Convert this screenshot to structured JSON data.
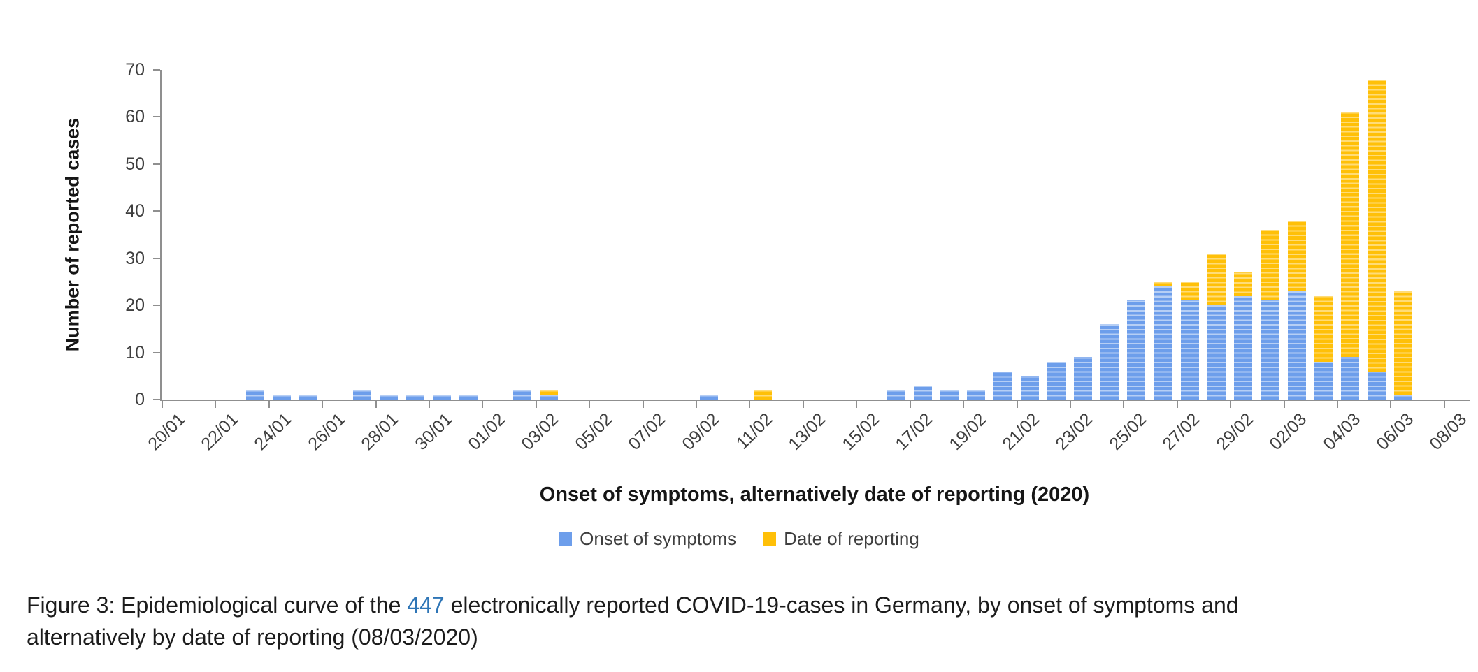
{
  "chart_data": {
    "type": "bar",
    "stacked": true,
    "xlabel": "Onset of symptoms, alternatively date of reporting (2020)",
    "ylabel": "Number of reported cases",
    "ylim": [
      0,
      70
    ],
    "y_ticks": [
      0,
      10,
      20,
      30,
      40,
      50,
      60,
      70
    ],
    "x_tick_interval": 2,
    "legend_position": "bottom-center",
    "grid": false,
    "categories": [
      "20/01",
      "21/01",
      "22/01",
      "23/01",
      "24/01",
      "25/01",
      "26/01",
      "27/01",
      "28/01",
      "29/01",
      "30/01",
      "31/01",
      "01/02",
      "02/02",
      "03/02",
      "04/02",
      "05/02",
      "06/02",
      "07/02",
      "08/02",
      "09/02",
      "10/02",
      "11/02",
      "12/02",
      "13/02",
      "14/02",
      "15/02",
      "16/02",
      "17/02",
      "18/02",
      "19/02",
      "20/02",
      "21/02",
      "22/02",
      "23/02",
      "24/02",
      "25/02",
      "26/02",
      "27/02",
      "28/02",
      "29/02",
      "01/03",
      "02/03",
      "03/03",
      "04/03",
      "05/03",
      "06/03",
      "07/03",
      "08/03"
    ],
    "series": [
      {
        "name": "Onset of symptoms",
        "color": "#6D9EEB",
        "values": [
          0,
          0,
          0,
          2,
          1,
          1,
          0,
          2,
          1,
          1,
          1,
          1,
          0,
          2,
          1,
          0,
          0,
          0,
          0,
          0,
          1,
          0,
          0,
          0,
          0,
          0,
          0,
          2,
          3,
          2,
          2,
          6,
          5,
          8,
          9,
          16,
          21,
          24,
          21,
          20,
          22,
          21,
          23,
          8,
          9,
          6,
          1,
          0,
          0
        ]
      },
      {
        "name": "Date of reporting",
        "color": "#FFC008",
        "values": [
          0,
          0,
          0,
          0,
          0,
          0,
          0,
          0,
          0,
          0,
          0,
          0,
          0,
          0,
          1,
          0,
          0,
          0,
          0,
          0,
          0,
          0,
          2,
          0,
          0,
          0,
          0,
          0,
          0,
          0,
          0,
          0,
          0,
          0,
          0,
          0,
          0,
          1,
          4,
          11,
          5,
          15,
          15,
          14,
          52,
          62,
          22,
          0,
          0
        ]
      }
    ],
    "total_cases": 447
  },
  "caption": {
    "line1_prefix": "Figure 3: Epidemiological curve of the ",
    "count": "447",
    "line1_suffix": " electronically reported COVID-19-cases in Germany, by onset of symptoms and",
    "line2": "alternatively by date of reporting (08/03/2020)"
  },
  "colors": {
    "onset_blue": "#6D9EEB",
    "reporting_yellow": "#FFC008",
    "axis_gray": "#8f8f8f",
    "caption_count_blue": "#2E75B6"
  }
}
